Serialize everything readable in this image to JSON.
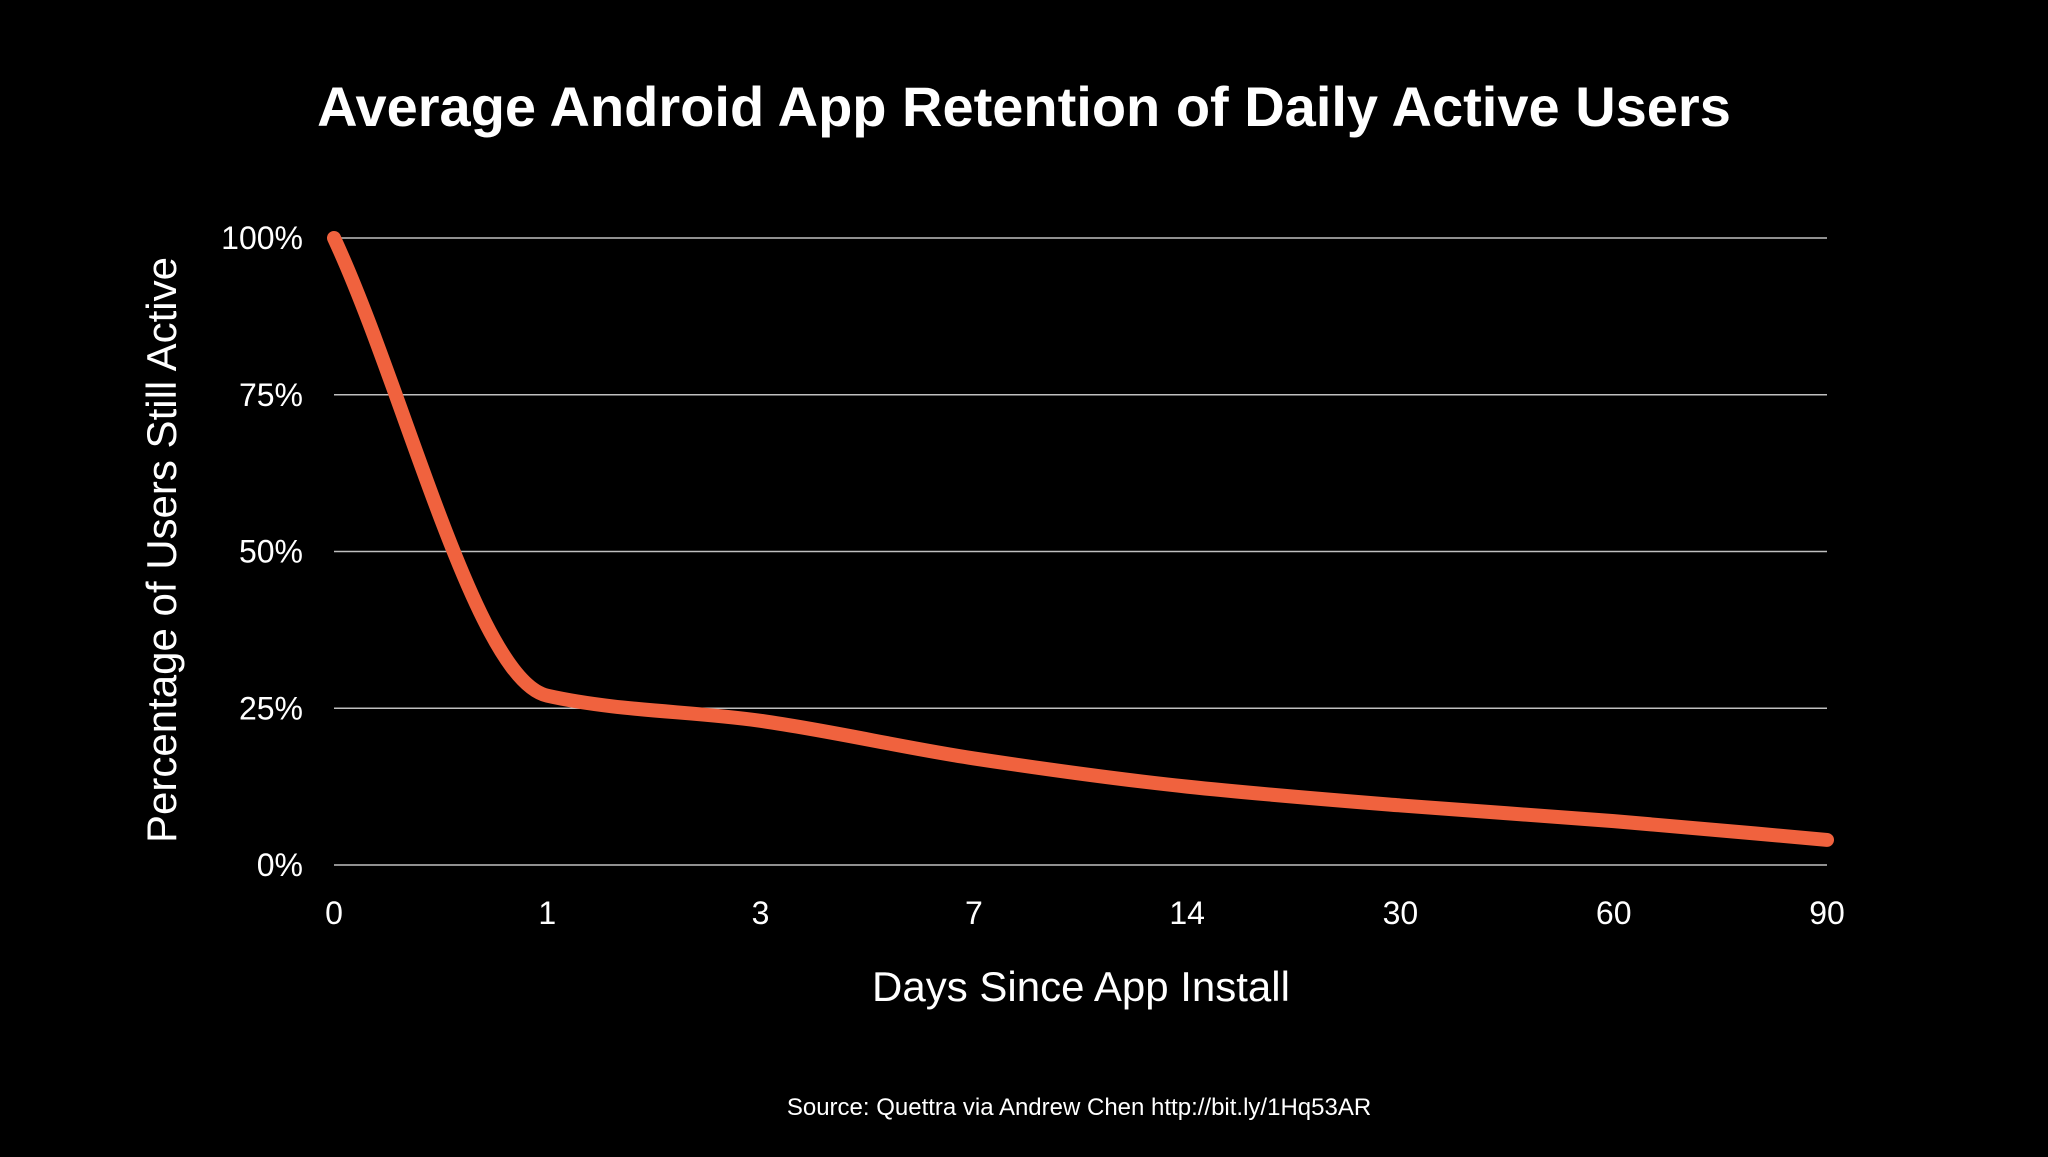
{
  "chart_data": {
    "type": "line",
    "title": "Average Android App Retention of Daily Active Users",
    "xlabel": "Days Since App Install",
    "ylabel": "Percentage of Users Still Active",
    "x_tick_labels": [
      "0",
      "1",
      "3",
      "7",
      "14",
      "30",
      "60",
      "90"
    ],
    "y_tick_labels": [
      "0%",
      "25%",
      "50%",
      "75%",
      "100%"
    ],
    "y_ticks": [
      0,
      25,
      50,
      75,
      100
    ],
    "ylim": [
      0,
      100
    ],
    "x_scale": "categorical (evenly spaced ticks)",
    "grid": "horizontal",
    "series": [
      {
        "x": [
          "0",
          "1",
          "3",
          "7",
          "14",
          "30",
          "60",
          "90"
        ],
        "values": [
          100,
          27,
          23,
          17,
          12.5,
          9.5,
          7,
          4
        ]
      }
    ],
    "line_color": "#F0623E",
    "background_color": "#000000",
    "grid_color": "#BFBFBF"
  },
  "source": "Source: Quettra via Andrew Chen http://bit.ly/1Hq53AR"
}
